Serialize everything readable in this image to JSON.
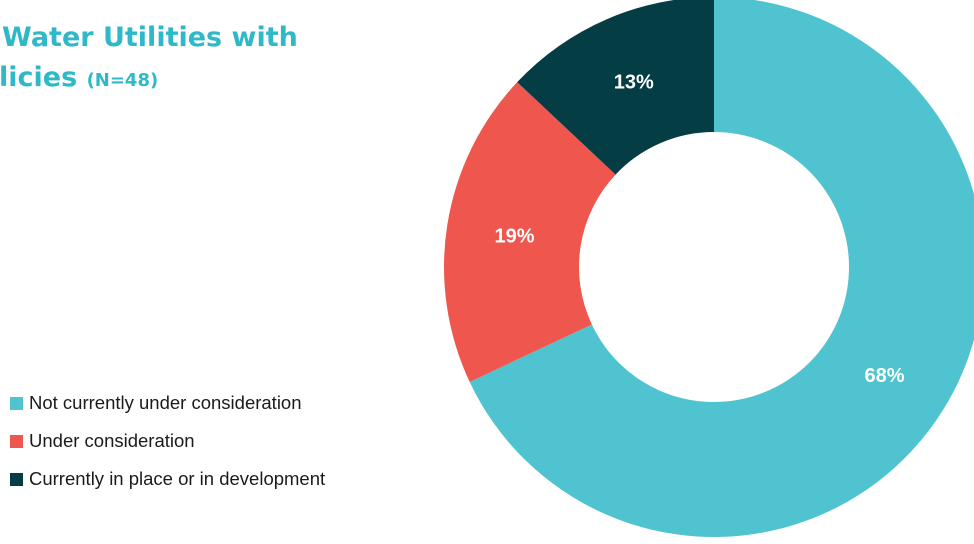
{
  "title": {
    "line1": "Water Utilities with",
    "line2": "licies",
    "n_label": "(N=48)"
  },
  "chart_data": {
    "type": "pie",
    "variant": "donut",
    "categories": [
      "Not currently under consideration",
      "Under consideration",
      "Currently in place or in development"
    ],
    "values": [
      68,
      19,
      13
    ],
    "data_labels": [
      "68%",
      "19%",
      "13%"
    ],
    "colors": [
      "#4fc3cf",
      "#ef564d",
      "#053d45"
    ],
    "label_colors": [
      "#ffffff",
      "#ffffff",
      "#ffffff"
    ],
    "legend_position": "left"
  }
}
